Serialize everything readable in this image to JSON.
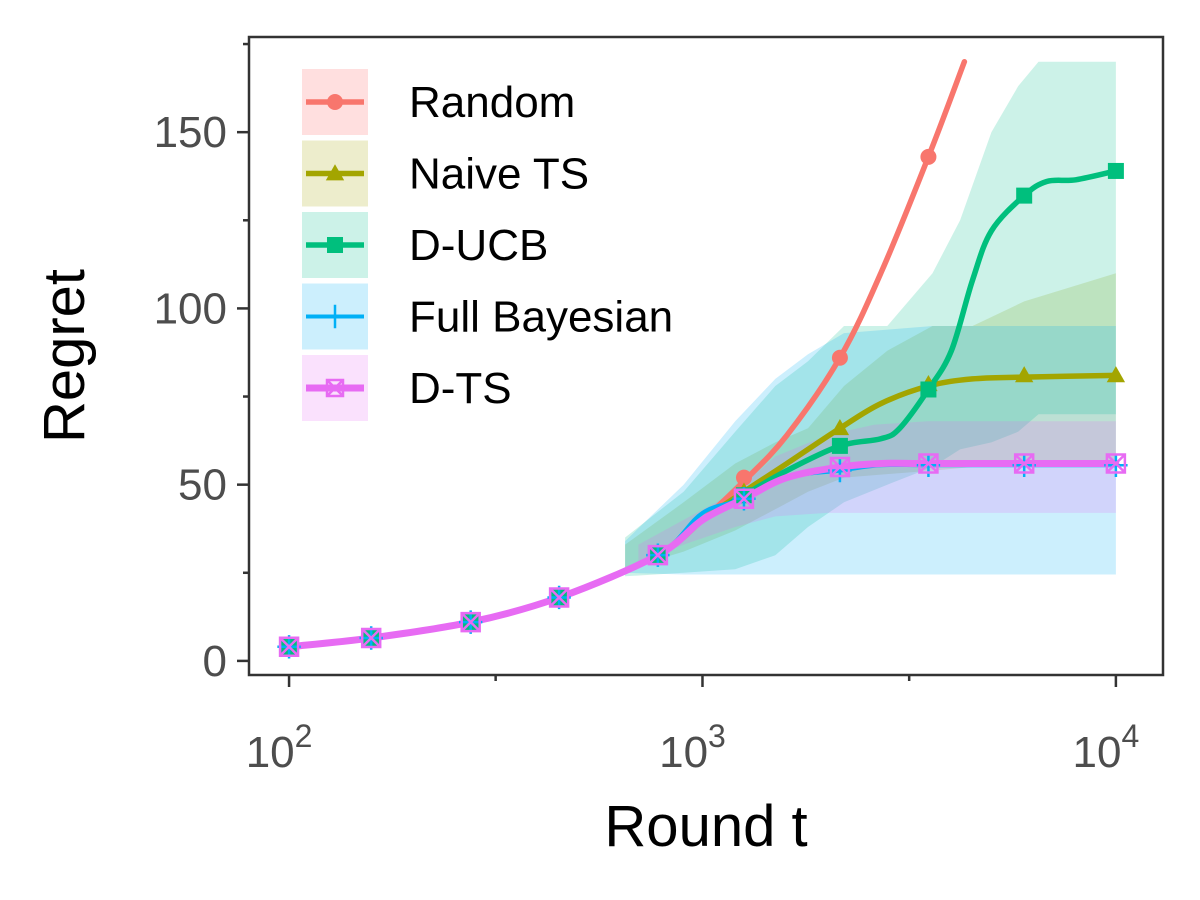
{
  "chart_data": {
    "type": "line",
    "xscale": "log",
    "xlabel": "Round t",
    "ylabel": "Regret",
    "xlim": [
      80,
      13000
    ],
    "ylim": [
      -4,
      177
    ],
    "grid": false,
    "legend_position": "top-left",
    "x_ticks": [
      {
        "value": 100,
        "base": "10",
        "exp": "2"
      },
      {
        "value": 1000,
        "base": "10",
        "exp": "3"
      },
      {
        "value": 10000,
        "base": "10",
        "exp": "4"
      }
    ],
    "x_minor_ticks": [
      316,
      3162
    ],
    "y_ticks": [
      {
        "value": 0,
        "label": "0"
      },
      {
        "value": 50,
        "label": "50"
      },
      {
        "value": 100,
        "label": "100"
      },
      {
        "value": 150,
        "label": "150"
      }
    ],
    "y_minor_ticks": [
      25,
      75,
      125,
      175
    ],
    "marker_x": [
      100,
      158,
      275,
      450,
      780,
      1260,
      2150,
      3520,
      6000,
      10000
    ],
    "series": [
      {
        "name": "Random",
        "color": "#f8766d",
        "marker": "circle",
        "band_color": "#ff4d4d",
        "band_opacity": 0.18,
        "x": [
          100,
          158,
          275,
          450,
          780,
          1000,
          1260,
          1600,
          2150,
          2700,
          3520,
          4300
        ],
        "y": [
          4,
          6.5,
          11,
          18,
          30,
          40,
          51,
          64,
          86,
          110,
          143,
          170
        ],
        "markers": [
          [
            100,
            4
          ],
          [
            158,
            6.5
          ],
          [
            275,
            11
          ],
          [
            450,
            18
          ],
          [
            780,
            30
          ],
          [
            1260,
            52
          ],
          [
            2150,
            86
          ],
          [
            3520,
            143
          ]
        ]
      },
      {
        "name": "Naive TS",
        "color": "#a3a500",
        "marker": "triangle",
        "band_color": "#a3a500",
        "band_opacity": 0.2,
        "x": [
          100,
          158,
          275,
          450,
          780,
          1000,
          1260,
          1600,
          2150,
          2700,
          3520,
          4500,
          6000,
          10000
        ],
        "y": [
          4,
          6.5,
          11,
          18,
          30,
          40,
          48,
          56,
          66,
          73,
          78,
          80,
          80.5,
          81
        ],
        "markers": [
          [
            100,
            4
          ],
          [
            158,
            6.5
          ],
          [
            275,
            11
          ],
          [
            450,
            18
          ],
          [
            780,
            30
          ],
          [
            1260,
            48
          ],
          [
            2150,
            66
          ],
          [
            3520,
            78.5
          ],
          [
            6000,
            81
          ],
          [
            10000,
            81
          ]
        ],
        "band_x": [
          650,
          900,
          1200,
          1500,
          1800,
          2200,
          2800,
          3600,
          4500,
          6000,
          10000
        ],
        "band_upper": [
          33,
          45,
          56,
          62,
          66,
          78,
          88,
          95,
          95,
          102,
          110
        ],
        "band_lower": [
          26,
          31,
          37,
          43,
          48,
          52,
          53,
          54,
          55,
          55,
          55
        ]
      },
      {
        "name": "D-UCB",
        "color": "#00bf7d",
        "marker": "square",
        "band_color": "#00c08b",
        "band_opacity": 0.2,
        "x": [
          100,
          158,
          275,
          450,
          780,
          1000,
          1260,
          1600,
          2150,
          2700,
          3000,
          3520,
          4000,
          4500,
          5000,
          6000,
          6800,
          8000,
          10000
        ],
        "y": [
          4,
          6.5,
          11,
          18,
          30,
          40,
          47,
          54,
          61,
          63,
          66,
          77,
          88,
          108,
          122,
          132,
          136,
          136.5,
          139
        ],
        "markers": [
          [
            100,
            4
          ],
          [
            158,
            6.5
          ],
          [
            275,
            11
          ],
          [
            450,
            18
          ],
          [
            780,
            30
          ],
          [
            1260,
            47
          ],
          [
            2150,
            61
          ],
          [
            3520,
            77
          ],
          [
            6000,
            132
          ],
          [
            10000,
            139
          ]
        ],
        "band_x": [
          650,
          900,
          1200,
          1500,
          1800,
          2200,
          2800,
          3600,
          4200,
          5000,
          5800,
          6500,
          7500,
          10000
        ],
        "band_upper": [
          35,
          48,
          65,
          78,
          85,
          95,
          95,
          110,
          125,
          150,
          163,
          170,
          170,
          170
        ],
        "band_lower": [
          24,
          25,
          26,
          30,
          38,
          45,
          50,
          55,
          60,
          62,
          65,
          70,
          70,
          70
        ]
      },
      {
        "name": "Full Bayesian",
        "color": "#00b0f6",
        "marker": "plus",
        "band_color": "#00b0f6",
        "band_opacity": 0.2,
        "x": [
          100,
          158,
          275,
          450,
          780,
          1000,
          1260,
          1600,
          2150,
          2700,
          3520,
          6000,
          10000
        ],
        "y": [
          4,
          6.5,
          11,
          18,
          30,
          42,
          46,
          52,
          54,
          55.5,
          55.5,
          55.5,
          55.5
        ],
        "markers": [
          [
            100,
            4
          ],
          [
            158,
            6.5
          ],
          [
            275,
            11
          ],
          [
            450,
            18
          ],
          [
            780,
            30
          ],
          [
            1260,
            46
          ],
          [
            2150,
            54
          ],
          [
            3520,
            55.5
          ],
          [
            6000,
            55.5
          ],
          [
            10000,
            55.5
          ]
        ],
        "band_x": [
          650,
          900,
          1200,
          1500,
          1800,
          2200,
          2800,
          3600,
          10000
        ],
        "band_upper": [
          34,
          50,
          68,
          80,
          87,
          93,
          94,
          95,
          95
        ],
        "band_lower": [
          25,
          24.5,
          24.5,
          24.5,
          24.5,
          24.5,
          24.5,
          24.5,
          24.5
        ]
      },
      {
        "name": "D-TS",
        "color": "#e76bf3",
        "marker": "square-x",
        "band_color": "#e76bf3",
        "band_opacity": 0.2,
        "x": [
          100,
          158,
          275,
          450,
          780,
          1000,
          1260,
          1600,
          2150,
          2700,
          3520,
          6000,
          10000
        ],
        "y": [
          4,
          6.5,
          11,
          18,
          30,
          40,
          46,
          52,
          55,
          56,
          56,
          56,
          56
        ],
        "markers": [
          [
            100,
            4
          ],
          [
            158,
            6.5
          ],
          [
            275,
            11
          ],
          [
            450,
            18
          ],
          [
            780,
            30
          ],
          [
            1260,
            46
          ],
          [
            2150,
            55
          ],
          [
            3520,
            56
          ],
          [
            6000,
            56
          ],
          [
            10000,
            56
          ]
        ],
        "band_x": [
          700,
          900,
          1200,
          1500,
          2000,
          2600,
          3500,
          10000
        ],
        "band_upper": [
          33,
          40,
          48,
          58,
          64,
          67,
          68,
          68
        ],
        "band_lower": [
          28,
          33,
          38,
          41,
          42,
          42,
          42,
          42
        ]
      }
    ]
  }
}
